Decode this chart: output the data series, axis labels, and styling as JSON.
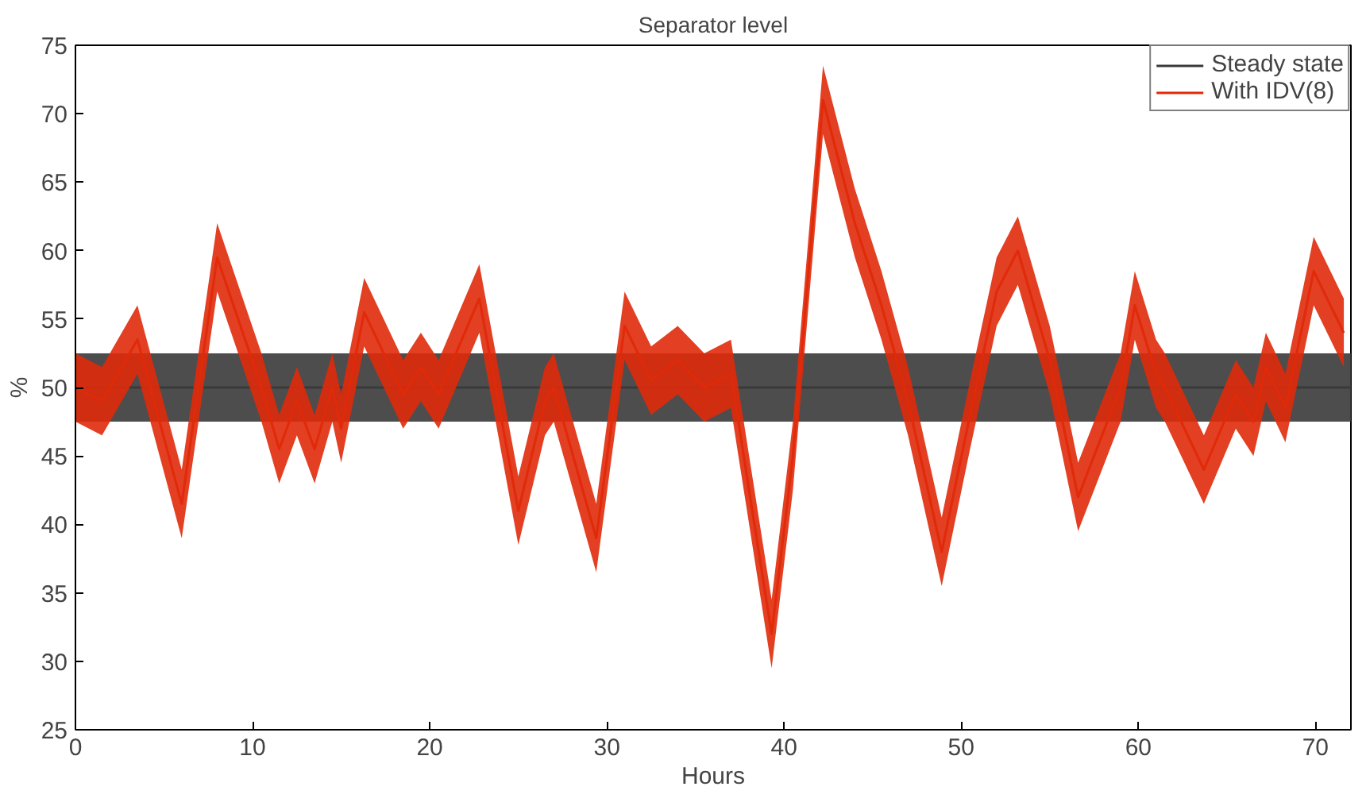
{
  "chart_data": {
    "type": "line",
    "title": "Separator level",
    "xlabel": "Hours",
    "ylabel": "%",
    "xlim": [
      0,
      72
    ],
    "ylim": [
      25,
      75
    ],
    "xticks": [
      0,
      10,
      20,
      30,
      40,
      50,
      60,
      70
    ],
    "yticks": [
      25,
      30,
      35,
      40,
      45,
      50,
      55,
      60,
      65,
      70,
      75
    ],
    "grid": false,
    "legend": "top right",
    "marker": "none",
    "line_style": "solid",
    "series": [
      {
        "name": "Steady state",
        "color": "#3a3a3a",
        "x": [
          0,
          72
        ],
        "values": [
          50,
          50
        ],
        "lower": [
          47.5,
          47.5
        ],
        "upper": [
          52.5,
          52.5
        ]
      },
      {
        "name": "With IDV(8)",
        "color": "#e02a0a",
        "x": [
          0,
          1.5,
          3.5,
          6,
          8,
          10.5,
          11.5,
          12.5,
          13.5,
          14.5,
          15,
          16.3,
          18.5,
          19.5,
          20.5,
          22.8,
          25,
          26.5,
          27,
          29.4,
          31,
          32.5,
          34,
          35.5,
          37,
          39.3,
          40.5,
          42.2,
          44,
          45.5,
          47,
          48.9,
          50.5,
          52,
          53.2,
          55,
          56.6,
          59,
          59.8,
          61,
          61.5,
          63.7,
          65.5,
          66.5,
          67.2,
          68.3,
          69.9,
          71.6
        ],
        "values": [
          50,
          49,
          53.5,
          41.5,
          59.5,
          50,
          45.5,
          49,
          45.5,
          50,
          47,
          55.5,
          49.5,
          51.5,
          49.5,
          56.5,
          41,
          49,
          50,
          39,
          54.5,
          50.5,
          52,
          50,
          51,
          32,
          45,
          71,
          62,
          56,
          49,
          38,
          48,
          57,
          60,
          52,
          42,
          50,
          56,
          51,
          50,
          44,
          49.5,
          47.5,
          51.5,
          48.5,
          58.5,
          54
        ],
        "lower": [
          47.5,
          46.5,
          51,
          39,
          57,
          47.5,
          43,
          46.5,
          43,
          47.5,
          44.5,
          53,
          47,
          49,
          47,
          54,
          38.5,
          46.5,
          47.5,
          36.5,
          52,
          48,
          49.5,
          47.5,
          48.5,
          29.5,
          42.5,
          68.5,
          59.5,
          53.5,
          46.5,
          35.5,
          45.5,
          54.5,
          57.5,
          49.5,
          39.5,
          47.5,
          53.5,
          48.5,
          47.5,
          41.5,
          47,
          45,
          49,
          46,
          56,
          51.5
        ],
        "upper": [
          52.5,
          51.5,
          56,
          44,
          62,
          52.5,
          48,
          51.5,
          48,
          52.5,
          49.5,
          58,
          52,
          54,
          52,
          59,
          43.5,
          51.5,
          52.5,
          41.5,
          57,
          53,
          54.5,
          52.5,
          53.5,
          34.5,
          47.5,
          73.5,
          64.5,
          58.5,
          51.5,
          40.5,
          50.5,
          59.5,
          62.5,
          54.5,
          44.5,
          52.5,
          58.5,
          53.5,
          52.5,
          46.5,
          52,
          50,
          54,
          51,
          61,
          56.5
        ]
      }
    ]
  }
}
